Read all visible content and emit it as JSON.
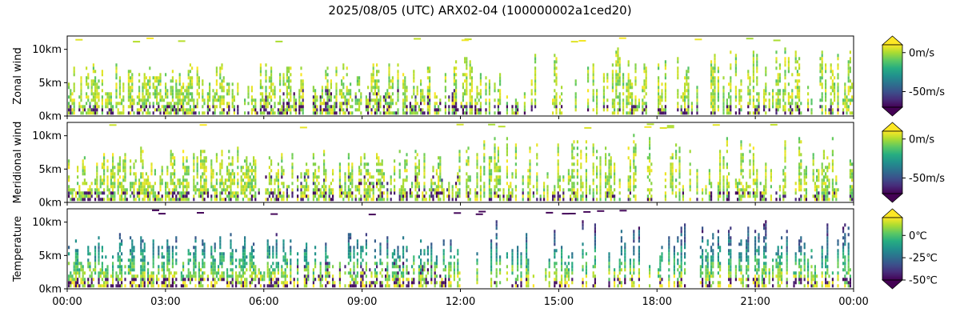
{
  "chart_data": {
    "type": "heatmap",
    "title": "2025/08/05 (UTC) ARX02-04 (100000002a1ced20)",
    "x_ticks": [
      "00:00",
      "03:00",
      "06:00",
      "09:00",
      "12:00",
      "15:00",
      "18:00",
      "21:00",
      "00:00"
    ],
    "xlim_hours": [
      0,
      24
    ],
    "ylim_km": [
      0,
      12
    ],
    "y_ticks": [
      "0km",
      "5km",
      "10km"
    ],
    "grid": false,
    "panels": [
      {
        "ylabel": "Zonal wind",
        "colormap": "viridis",
        "colorbar_extend": "both",
        "colorbar_ticks": [
          "0m/s",
          "-50m/s"
        ],
        "colorbar_range": [
          -70,
          10
        ],
        "colorbar_tick_values": [
          0,
          -50
        ]
      },
      {
        "ylabel": "Meridional wind",
        "colormap": "viridis",
        "colorbar_extend": "both",
        "colorbar_ticks": [
          "0m/s",
          "-50m/s"
        ],
        "colorbar_range": [
          -70,
          10
        ],
        "colorbar_tick_values": [
          0,
          -50
        ]
      },
      {
        "ylabel": "Temperature",
        "colormap": "viridis",
        "colorbar_extend": "both",
        "colorbar_ticks": [
          "0℃",
          "-25℃",
          "-50℃"
        ],
        "colorbar_range": [
          -50,
          20
        ],
        "colorbar_tick_values": [
          0,
          -25,
          -50
        ]
      }
    ]
  }
}
